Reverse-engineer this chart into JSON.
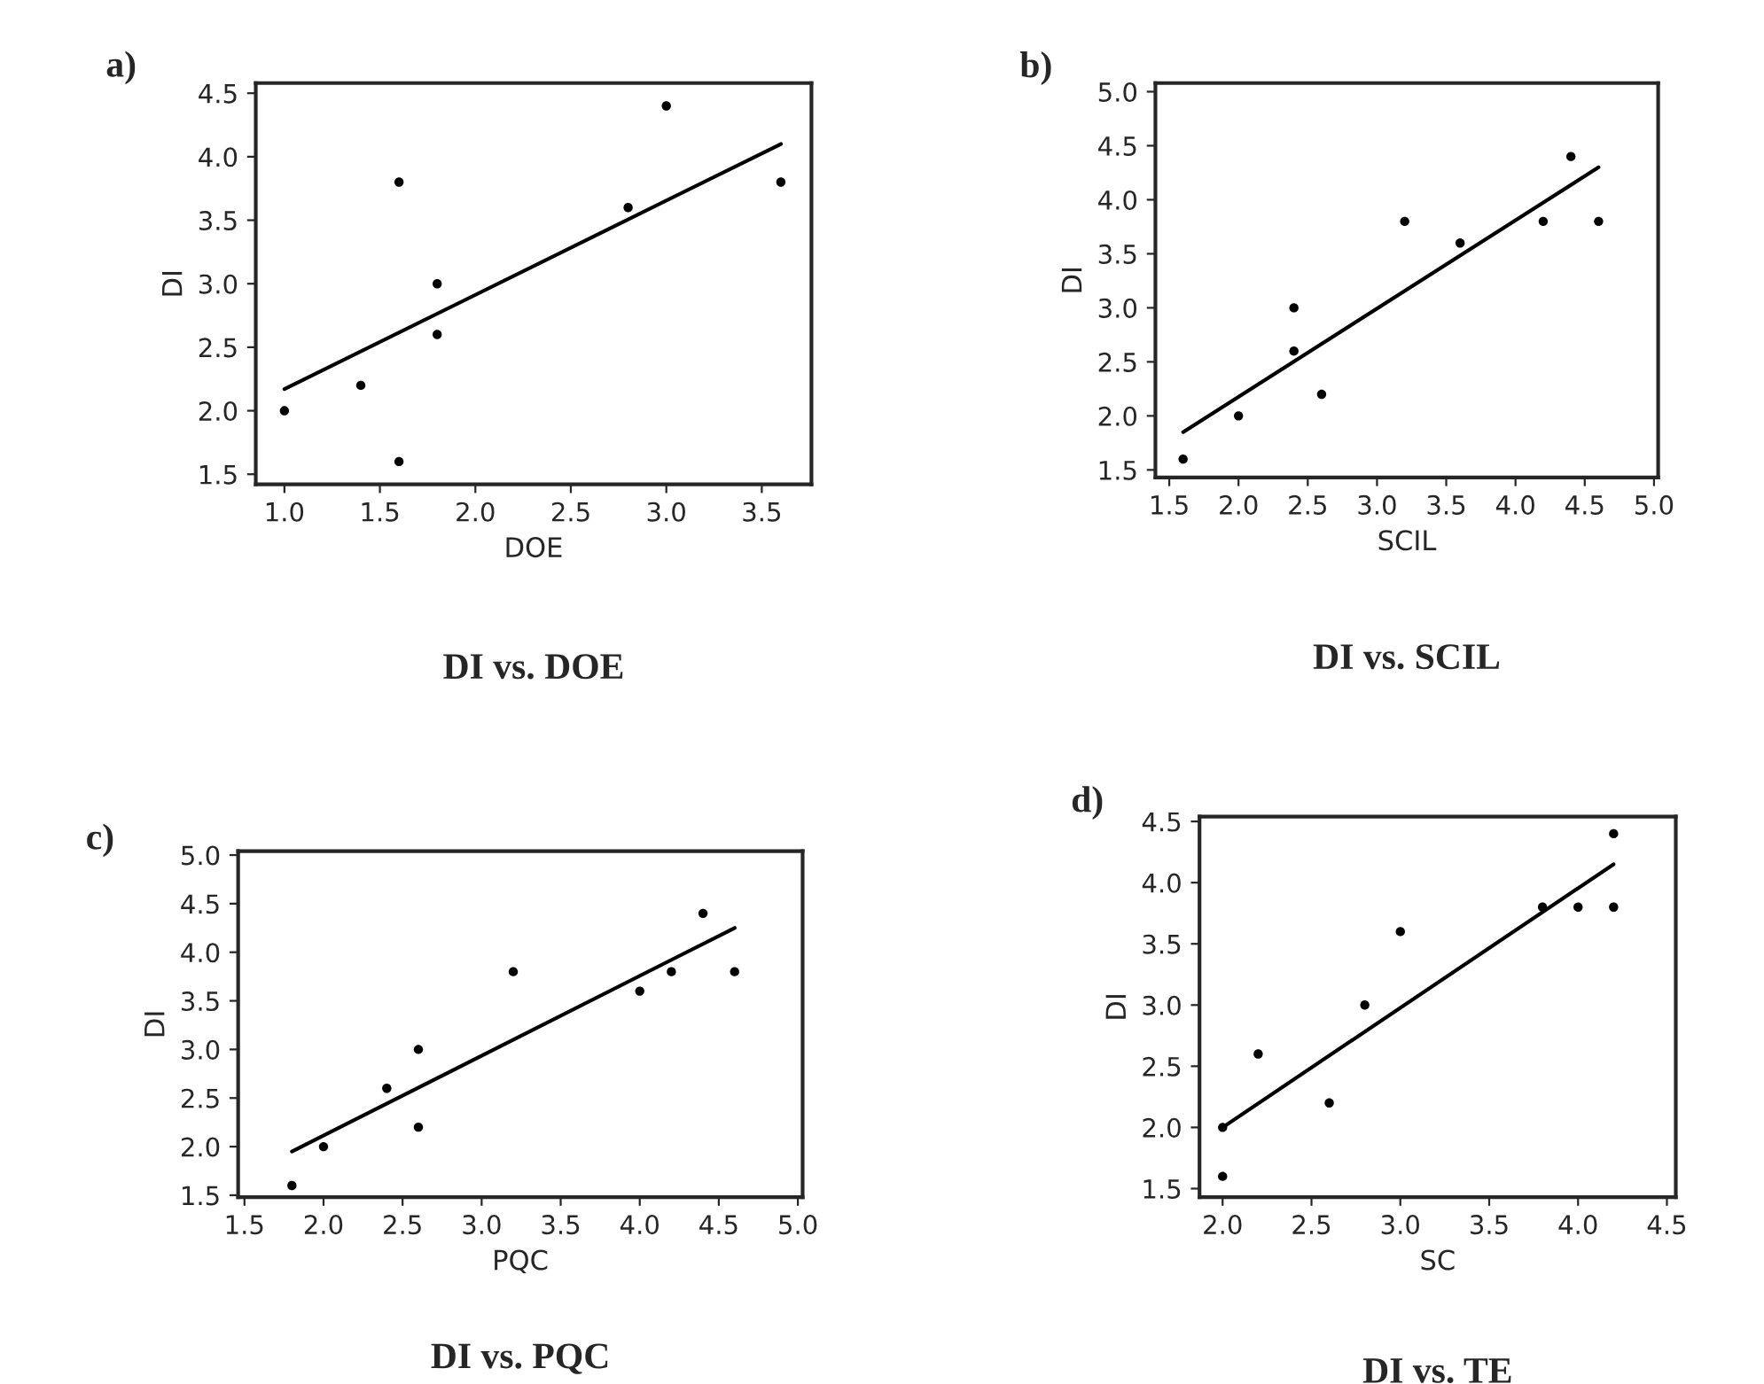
{
  "chart_data": [
    {
      "type": "scatter",
      "title": "DI vs. DOE",
      "xlabel": "DOE",
      "ylabel": "DI",
      "annotations": [
        "a)"
      ],
      "xlim": [
        0.85,
        3.76
      ],
      "ylim": [
        1.42,
        4.58
      ],
      "xticks": [
        {
          "value": 1.0,
          "label": "1.0"
        },
        {
          "value": 1.5,
          "label": "1.5"
        },
        {
          "value": 2.0,
          "label": "2.0"
        },
        {
          "value": 2.5,
          "label": "2.5"
        },
        {
          "value": 3.0,
          "label": "3.0"
        },
        {
          "value": 3.5,
          "label": "3.5"
        }
      ],
      "yticks": [
        1.5,
        {
          "value": 2.0,
          "label": "2.0"
        },
        2.5,
        {
          "value": 3.0,
          "label": "3.0"
        },
        3.5,
        {
          "value": 4.0,
          "label": "4.0"
        },
        4.5
      ],
      "grid": false,
      "legend": false,
      "series": [
        {
          "marker": "circle",
          "color": "#000000",
          "x": [
            1.0,
            1.4,
            1.6,
            1.6,
            1.8,
            1.8,
            2.8,
            3.0,
            3.6
          ],
          "values": [
            2.0,
            2.2,
            3.8,
            1.6,
            3.0,
            2.6,
            3.6,
            4.4,
            3.8
          ]
        },
        {
          "type": "line",
          "color": "#000000",
          "line_style": "solid",
          "x": [
            1.0,
            3.6
          ],
          "values": [
            2.17,
            4.1
          ]
        }
      ]
    },
    {
      "type": "scatter",
      "title": "DI vs. SCIL",
      "xlabel": "SCIL",
      "ylabel": "DI",
      "annotations": [
        "b)"
      ],
      "xlim": [
        1.4,
        5.03
      ],
      "ylim": [
        1.43,
        5.08
      ],
      "xticks": [
        1.5,
        {
          "value": 2.0,
          "label": "2.0"
        },
        2.5,
        {
          "value": 3.0,
          "label": "3.0"
        },
        3.5,
        {
          "value": 4.0,
          "label": "4.0"
        },
        4.5,
        {
          "value": 5.0,
          "label": "5.0"
        }
      ],
      "yticks": [
        1.5,
        {
          "value": 2.0,
          "label": "2.0"
        },
        2.5,
        {
          "value": 3.0,
          "label": "3.0"
        },
        3.5,
        {
          "value": 4.0,
          "label": "4.0"
        },
        4.5,
        {
          "value": 5.0,
          "label": "5.0"
        }
      ],
      "grid": false,
      "legend": false,
      "series": [
        {
          "marker": "circle",
          "color": "#000000",
          "x": [
            1.6,
            2.0,
            2.4,
            2.4,
            2.6,
            3.2,
            3.6,
            4.2,
            4.4,
            4.6
          ],
          "values": [
            1.6,
            2.0,
            3.0,
            2.6,
            2.2,
            3.8,
            3.6,
            3.8,
            4.4,
            3.8
          ]
        },
        {
          "type": "line",
          "color": "#000000",
          "line_style": "solid",
          "x": [
            1.6,
            4.6
          ],
          "values": [
            1.85,
            4.3
          ]
        }
      ]
    },
    {
      "type": "scatter",
      "title": "DI vs. PQC",
      "xlabel": "PQC",
      "ylabel": "DI",
      "annotations": [
        "c)"
      ],
      "xlim": [
        1.46,
        5.03
      ],
      "ylim": [
        1.48,
        5.04
      ],
      "xticks": [
        1.5,
        {
          "value": 2.0,
          "label": "2.0"
        },
        2.5,
        {
          "value": 3.0,
          "label": "3.0"
        },
        3.5,
        {
          "value": 4.0,
          "label": "4.0"
        },
        4.5,
        {
          "value": 5.0,
          "label": "5.0"
        }
      ],
      "yticks": [
        1.5,
        {
          "value": 2.0,
          "label": "2.0"
        },
        2.5,
        {
          "value": 3.0,
          "label": "3.0"
        },
        3.5,
        {
          "value": 4.0,
          "label": "4.0"
        },
        4.5,
        {
          "value": 5.0,
          "label": "5.0"
        }
      ],
      "grid": false,
      "legend": false,
      "series": [
        {
          "marker": "circle",
          "color": "#000000",
          "x": [
            1.8,
            2.0,
            2.4,
            2.6,
            2.6,
            3.2,
            4.0,
            4.2,
            4.4,
            4.6
          ],
          "values": [
            1.6,
            2.0,
            2.6,
            3.0,
            2.2,
            3.8,
            3.6,
            3.8,
            4.4,
            3.8
          ]
        },
        {
          "type": "line",
          "color": "#000000",
          "line_style": "solid",
          "x": [
            1.8,
            4.6
          ],
          "values": [
            1.95,
            4.25
          ]
        }
      ]
    },
    {
      "type": "scatter",
      "title": "DI vs. TE",
      "xlabel": "SC",
      "ylabel": "DI",
      "annotations": [
        "d)"
      ],
      "xlim": [
        1.87,
        4.55
      ],
      "ylim": [
        1.43,
        4.54
      ],
      "xticks": [
        {
          "value": 2.0,
          "label": "2.0"
        },
        2.5,
        {
          "value": 3.0,
          "label": "3.0"
        },
        3.5,
        {
          "value": 4.0,
          "label": "4.0"
        },
        4.5
      ],
      "yticks": [
        1.5,
        {
          "value": 2.0,
          "label": "2.0"
        },
        2.5,
        {
          "value": 3.0,
          "label": "3.0"
        },
        3.5,
        {
          "value": 4.0,
          "label": "4.0"
        },
        4.5
      ],
      "grid": false,
      "legend": false,
      "series": [
        {
          "marker": "circle",
          "color": "#000000",
          "x": [
            2.0,
            2.0,
            2.2,
            2.6,
            2.8,
            3.0,
            3.8,
            4.0,
            4.2,
            4.2
          ],
          "values": [
            2.0,
            1.6,
            2.6,
            2.2,
            3.0,
            3.6,
            3.8,
            3.8,
            4.4,
            3.8
          ]
        },
        {
          "type": "line",
          "color": "#000000",
          "line_style": "solid",
          "x": [
            2.0,
            4.2
          ],
          "values": [
            2.0,
            4.15
          ]
        }
      ]
    }
  ]
}
